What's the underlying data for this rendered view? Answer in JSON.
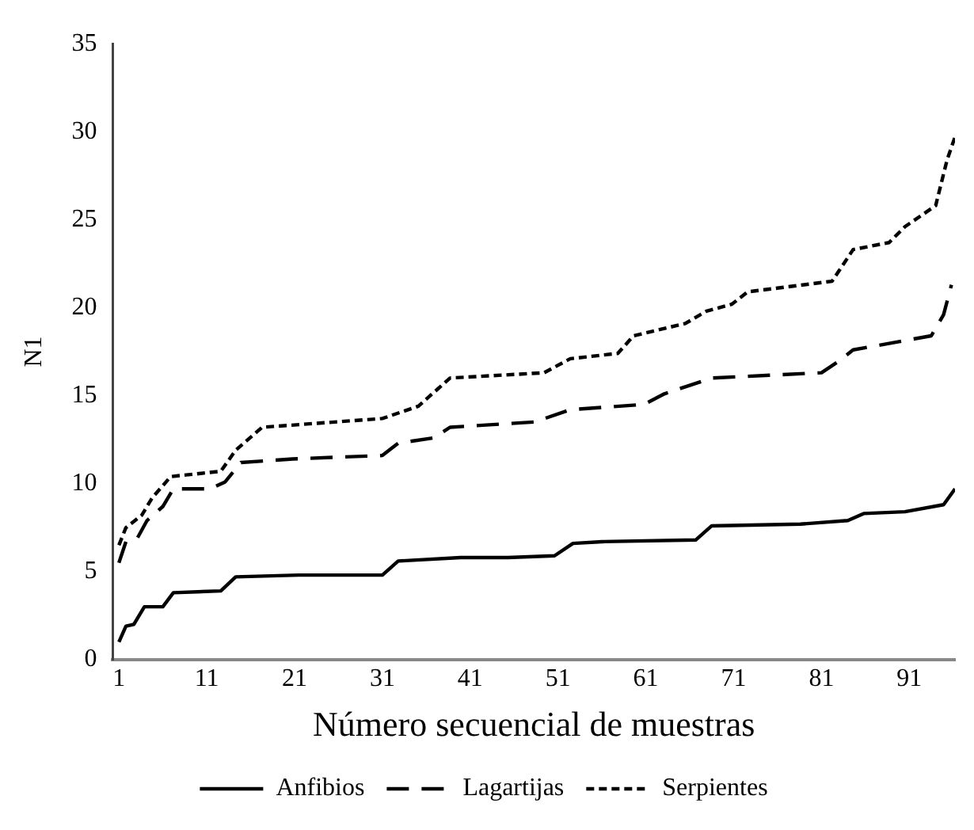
{
  "chart_data": {
    "type": "line",
    "xlabel": "Número secuencial de muestras",
    "ylabel": "N1",
    "xlim": [
      0.3,
      96.2
    ],
    "xticks": [
      1,
      11,
      21,
      31,
      41,
      51,
      61,
      71,
      81,
      91
    ],
    "ylim": [
      0,
      35
    ],
    "yticks": [
      0,
      5,
      10,
      15,
      20,
      25,
      30,
      35
    ],
    "grid": false,
    "legend": "bottom",
    "marker": "none",
    "series": [
      {
        "name": "Anfibios",
        "color": "#000000",
        "line_style": "solid",
        "x": [
          1,
          1.8,
          2.7,
          3.9,
          6,
          7.2,
          12.6,
          14.3,
          21.5,
          31,
          32.8,
          39.9,
          45.3,
          50.6,
          52.7,
          56,
          66.7,
          68.5,
          78.6,
          84,
          85.8,
          90.5,
          94.9,
          96.2
        ],
        "values": [
          1.0,
          1.9,
          2.0,
          3.0,
          3.0,
          3.8,
          3.9,
          4.7,
          4.8,
          4.8,
          5.6,
          5.8,
          5.8,
          5.9,
          6.6,
          6.7,
          6.8,
          7.6,
          7.7,
          7.9,
          8.3,
          8.4,
          8.8,
          9.7
        ]
      },
      {
        "name": "Lagartijas",
        "color": "#000000",
        "line_style": "dashed",
        "x": [
          1,
          1.8,
          3.1,
          4.2,
          6,
          7.2,
          11.4,
          13.1,
          14.9,
          20.8,
          31,
          32.8,
          36.9,
          38.7,
          48.3,
          52.4,
          60.8,
          63.1,
          68.5,
          81,
          82.8,
          84.6,
          93.5,
          94.9,
          95.8
        ],
        "values": [
          5.5,
          6.7,
          6.9,
          7.9,
          8.7,
          9.7,
          9.7,
          10.1,
          11.2,
          11.4,
          11.6,
          12.3,
          12.6,
          13.2,
          13.5,
          14.2,
          14.5,
          15.1,
          16.0,
          16.3,
          16.9,
          17.6,
          18.4,
          19.6,
          21.3
        ]
      },
      {
        "name": "Serpientes",
        "color": "#000000",
        "line_style": "dotted",
        "x": [
          1,
          1.8,
          3.6,
          4.8,
          6.9,
          12.6,
          14.3,
          17.3,
          31,
          35.1,
          38.7,
          49.4,
          52.4,
          57.8,
          59.6,
          65.5,
          67.9,
          70.8,
          72.6,
          82.2,
          84.6,
          88.7,
          90.5,
          94,
          95.3,
          96.2
        ],
        "values": [
          6.5,
          7.5,
          8.2,
          9.2,
          10.4,
          10.7,
          11.9,
          13.2,
          13.7,
          14.4,
          16.0,
          16.3,
          17.1,
          17.4,
          18.4,
          19.1,
          19.8,
          20.2,
          20.9,
          21.5,
          23.3,
          23.7,
          24.6,
          25.8,
          28.4,
          29.7
        ]
      }
    ]
  }
}
